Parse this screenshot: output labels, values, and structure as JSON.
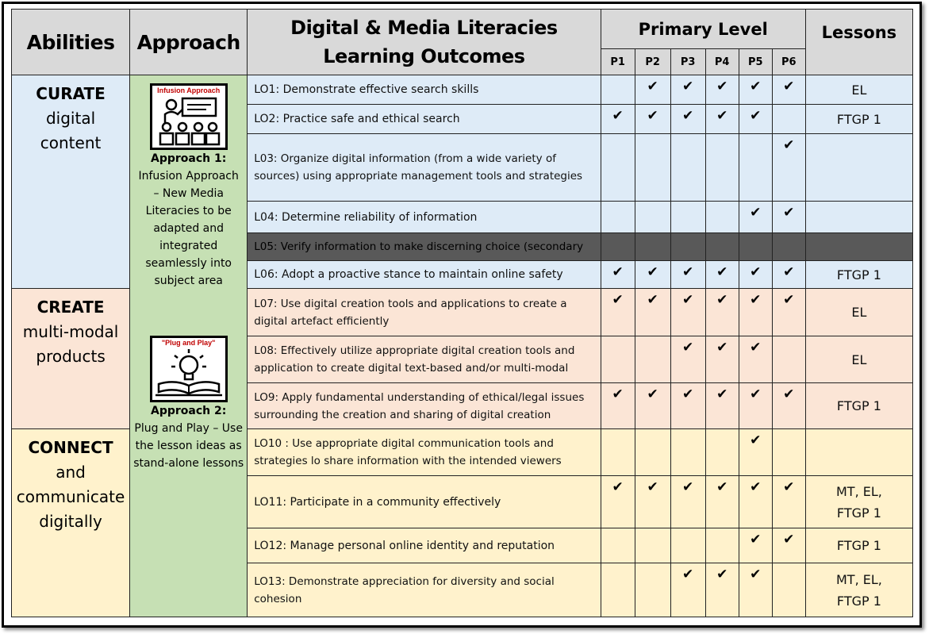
{
  "headers": {
    "abilities": "Abilities",
    "approach": "Approach",
    "outcomes_line1": "Digital & Media Literacies",
    "outcomes_line2": "Learning Outcomes",
    "primary_level": "Primary Level",
    "lessons": "Lessons",
    "levels": [
      "P1",
      "P2",
      "P3",
      "P4",
      "P5",
      "P6"
    ]
  },
  "abilities": [
    {
      "strong": "CURATE",
      "rest": [
        "digital",
        "content"
      ]
    },
    {
      "strong": "CREATE",
      "rest": [
        "multi-modal",
        "products"
      ]
    },
    {
      "strong": "CONNECT",
      "rest": [
        "and",
        "communicate",
        "digitally"
      ]
    }
  ],
  "approaches": [
    {
      "icon": "infusion-approach-icon",
      "icon_title": "Infusion Approach",
      "label": "Approach 1:",
      "desc": "Infusion Approach – New Media Literacies to be adapted and integrated seamlessly into subject area"
    },
    {
      "icon": "plug-and-play-icon",
      "icon_title": "\"Plug and Play\"",
      "label": "Approach 2:",
      "desc": "Plug and Play – Use the lesson ideas as stand-alone lessons"
    }
  ],
  "check_mark": "✔",
  "rows": [
    {
      "outcome": "LO1: Demonstrate effective search skills",
      "checks": [
        false,
        true,
        true,
        true,
        true,
        true
      ],
      "lessons": "EL"
    },
    {
      "outcome": "LO2: Practice safe and ethical search",
      "checks": [
        true,
        true,
        true,
        true,
        true,
        false
      ],
      "lessons": "FTGP 1"
    },
    {
      "outcome": "L03: Organize digital information (from a wide variety of sources) using appropriate management tools and strategies",
      "checks": [
        false,
        false,
        false,
        false,
        false,
        true
      ],
      "lessons": ""
    },
    {
      "outcome": "L04: Determine reliability of information",
      "checks": [
        false,
        false,
        false,
        false,
        true,
        true
      ],
      "lessons": ""
    },
    {
      "outcome": "L05: Verify information to make discerning choice (secondary",
      "checks": [
        false,
        false,
        false,
        false,
        false,
        false
      ],
      "lessons": ""
    },
    {
      "outcome": "L06: Adopt a proactive stance to maintain online safety",
      "checks": [
        true,
        true,
        true,
        true,
        true,
        true
      ],
      "lessons": "FTGP 1"
    },
    {
      "outcome": "L07: Use digital creation tools and applications to create a digital artefact efficiently",
      "checks": [
        true,
        true,
        true,
        true,
        true,
        true
      ],
      "lessons": "EL"
    },
    {
      "outcome": "L08: Effectively utilize appropriate digital creation tools and application to create digital text-based and/or multi-modal",
      "checks": [
        false,
        false,
        true,
        true,
        true,
        false
      ],
      "lessons": "EL"
    },
    {
      "outcome": "LO9: Apply fundamental understanding of ethical/legal issues surrounding the creation and sharing of digital creation",
      "checks": [
        true,
        true,
        true,
        true,
        true,
        true
      ],
      "lessons": "FTGP 1"
    },
    {
      "outcome": "LO10 : Use appropriate digital communication tools and strategies lo share information with the intended viewers",
      "checks": [
        false,
        false,
        false,
        false,
        true,
        false
      ],
      "lessons": ""
    },
    {
      "outcome": "LO11: Participate in a community effectively",
      "checks": [
        true,
        true,
        true,
        true,
        true,
        true
      ],
      "lessons": "MT, EL, FTGP 1"
    },
    {
      "outcome": "LO12: Manage personal online identity and reputation",
      "checks": [
        false,
        false,
        false,
        false,
        true,
        true
      ],
      "lessons": "FTGP 1"
    },
    {
      "outcome": "LO13: Demonstrate appreciation for diversity and social cohesion",
      "checks": [
        false,
        false,
        true,
        true,
        true,
        false
      ],
      "lessons": "MT, EL, FTGP 1"
    }
  ],
  "colors": {
    "curate": "#deebf7",
    "create": "#fbe5d6",
    "connect": "#fff2cc",
    "approach": "#c6e0b4",
    "header": "#d9d9d9",
    "disabled_row": "#595959"
  }
}
